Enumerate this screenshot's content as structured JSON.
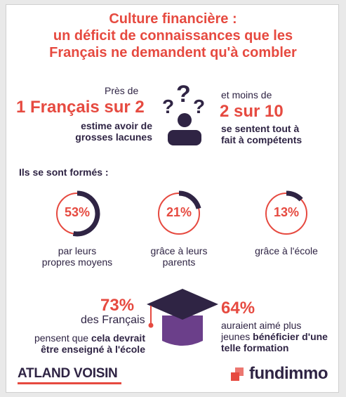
{
  "title": {
    "line1": "Culture financière :",
    "line2": "un déficit de connaissances que les",
    "line3": "Français ne demandent qu'à combler"
  },
  "stat_left": {
    "pre": "Près de",
    "big": "1 Français sur 2",
    "desc1": "estime avoir de",
    "desc2": "grosses lacunes"
  },
  "stat_right": {
    "pre": "et moins de",
    "big": "2 sur 10",
    "desc1": "se sentent tout à",
    "desc2": "fait à compétents"
  },
  "training": {
    "heading": "Ils se sont formés :",
    "items": [
      {
        "percent": "53%",
        "value": 0.53,
        "caption1": "par leurs",
        "caption2": "propres moyens"
      },
      {
        "percent": "21%",
        "value": 0.21,
        "caption1": "grâce à leurs",
        "caption2": "parents"
      },
      {
        "percent": "13%",
        "value": 0.13,
        "caption1": "grâce à l'école",
        "caption2": ""
      }
    ]
  },
  "bottom_left": {
    "big": "73%",
    "sub": "des Français",
    "line1_pre": "pensent que ",
    "line1_bold": "cela devrait",
    "line2_bold": "être enseigné à l'école"
  },
  "bottom_right": {
    "big": "64%",
    "line1": "auraient aimé plus",
    "line2_pre": "jeunes ",
    "line2_bold": "bénéficier d'une",
    "line3_bold": "telle formation"
  },
  "logos": {
    "atland": "ATLAND VOISIN",
    "fundimmo": "fundimmo"
  },
  "colors": {
    "accent": "#e64a40",
    "dark": "#2f2444",
    "purple": "#6b3f8a"
  },
  "icons": [
    "person-questions-icon",
    "graduation-cap-icon"
  ]
}
